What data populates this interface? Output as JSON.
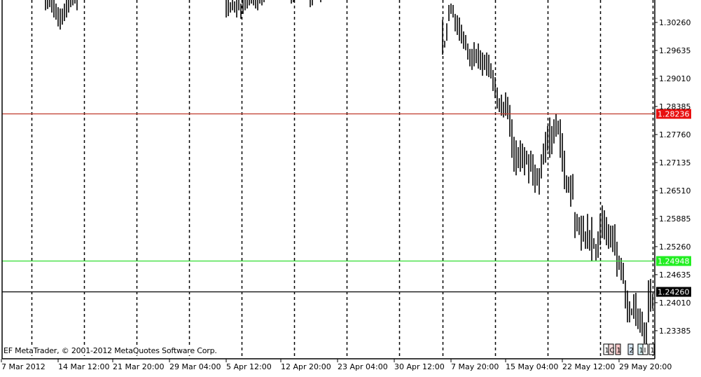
{
  "copyright": "EF MetaTrader, © 2001-2012 MetaQuotes Software Corp.",
  "colors": {
    "bars": "#000000",
    "ask_line": "#c0392b",
    "ask_tag": "#e81010",
    "green_line": "#33dd33",
    "green_tag": "#22ee22",
    "bid_line": "#000000",
    "bid_tag": "#000000",
    "grid": "#000000"
  },
  "chart_data": {
    "type": "ohlc",
    "ylim": [
      1.2279,
      1.3076
    ],
    "grid": "vertical dashed",
    "y_ticks": [
      "1.30260",
      "1.29635",
      "1.29010",
      "1.28385",
      "1.27760",
      "1.27135",
      "1.26510",
      "1.25885",
      "1.25260",
      "1.24635",
      "1.24010",
      "1.23385"
    ],
    "x_ticks": [
      {
        "label": "7 Mar 2012",
        "bar": 0
      },
      {
        "label": "14 Mar 12:00",
        "bar": 27
      },
      {
        "label": "21 Mar 20:00",
        "bar": 53
      },
      {
        "label": "29 Mar 04:00",
        "bar": 80
      },
      {
        "label": "5 Apr 12:00",
        "bar": 107
      },
      {
        "label": "12 Apr 20:00",
        "bar": 133
      },
      {
        "label": "23 Apr 04:00",
        "bar": 160
      },
      {
        "label": "30 Apr 12:00",
        "bar": 187
      },
      {
        "label": "7 May 20:00",
        "bar": 214
      },
      {
        "label": "15 May 04:00",
        "bar": 240
      },
      {
        "label": "22 May 12:00",
        "bar": 267
      },
      {
        "label": "29 May 20:00",
        "bar": 294
      }
    ],
    "price_lines": [
      {
        "name": "red-level",
        "value": "1.28236",
        "color": "#e81010"
      },
      {
        "name": "green-level",
        "value": "1.24948",
        "color": "#22ee22"
      },
      {
        "name": "current-price",
        "value": "1.24260",
        "color": "#000000"
      }
    ],
    "segments": [
      {
        "start_bar": 21,
        "bars": [
          [
            1.3076,
            1.3053
          ],
          [
            1.3076,
            1.3056
          ],
          [
            1.3076,
            1.306
          ],
          [
            1.3076,
            1.3048
          ],
          [
            1.3076,
            1.3037
          ],
          [
            1.3068,
            1.3032
          ],
          [
            1.306,
            1.3017
          ],
          [
            1.3057,
            1.301
          ],
          [
            1.3057,
            1.3021
          ],
          [
            1.3068,
            1.3029
          ],
          [
            1.3076,
            1.3037
          ],
          [
            1.3076,
            1.3048
          ],
          [
            1.3076,
            1.306
          ],
          [
            1.3076,
            1.3064
          ],
          [
            1.3076,
            1.3068
          ],
          [
            1.3076,
            1.3053
          ]
        ]
      },
      {
        "start_bar": 107,
        "bars": [
          [
            1.3076,
            1.3037
          ],
          [
            1.3076,
            1.304
          ],
          [
            1.3071,
            1.3048
          ],
          [
            1.3076,
            1.3053
          ],
          [
            1.3073,
            1.3048
          ],
          [
            1.3076,
            1.3037
          ],
          [
            1.3076,
            1.3053
          ],
          [
            1.3068,
            1.3034
          ],
          [
            1.3076,
            1.3045
          ],
          [
            1.3076,
            1.3053
          ],
          [
            1.3076,
            1.3057
          ],
          [
            1.3076,
            1.3064
          ],
          [
            1.3076,
            1.3068
          ],
          [
            1.3076,
            1.3064
          ],
          [
            1.3076,
            1.3057
          ],
          [
            1.3076,
            1.3053
          ],
          [
            1.3076,
            1.3068
          ],
          [
            1.3076,
            1.3064
          ],
          [
            1.3076,
            1.3071
          ]
        ]
      },
      {
        "start_bar": 138,
        "bars": [
          [
            1.3076,
            1.3068
          ],
          [
            1.3076,
            1.3071
          ]
        ]
      },
      {
        "start_bar": 147,
        "bars": [
          [
            1.3076,
            1.306
          ],
          [
            1.3076,
            1.3064
          ]
        ]
      },
      {
        "start_bar": 152,
        "bars": [
          [
            1.3076,
            1.3071
          ]
        ]
      },
      {
        "start_bar": 210,
        "bars": [
          [
            1.3032,
            1.2954
          ],
          [
            1.2985,
            1.297
          ],
          [
            1.3024,
            1.2985
          ],
          [
            1.3065,
            1.3029
          ],
          [
            1.3068,
            1.3045
          ],
          [
            1.3065,
            1.3037
          ],
          [
            1.3045,
            1.3006
          ],
          [
            1.3042,
            1.2998
          ],
          [
            1.3037,
            1.2985
          ],
          [
            1.3021,
            1.2979
          ],
          [
            1.3006,
            1.2967
          ],
          [
            1.2998,
            1.2964
          ],
          [
            1.2979,
            1.2943
          ],
          [
            1.2967,
            1.2928
          ],
          [
            1.2967,
            1.292
          ],
          [
            1.2982,
            1.2928
          ],
          [
            1.2967,
            1.2935
          ],
          [
            1.2979,
            1.2923
          ],
          [
            1.2964,
            1.292
          ],
          [
            1.2959,
            1.2907
          ],
          [
            1.2954,
            1.292
          ],
          [
            1.2959,
            1.2907
          ],
          [
            1.2954,
            1.2904
          ],
          [
            1.2935,
            1.2901
          ],
          [
            1.292,
            1.2873
          ],
          [
            1.2904,
            1.2857
          ],
          [
            1.2881,
            1.2834
          ],
          [
            1.2857,
            1.2826
          ],
          [
            1.2865,
            1.2818
          ],
          [
            1.2849,
            1.2814
          ],
          [
            1.287,
            1.2818
          ],
          [
            1.286,
            1.281
          ],
          [
            1.2842,
            1.2771
          ],
          [
            1.281,
            1.2724
          ],
          [
            1.2771,
            1.2693
          ],
          [
            1.2763,
            1.2685
          ],
          [
            1.2748,
            1.2701
          ],
          [
            1.2763,
            1.2693
          ],
          [
            1.2756,
            1.2701
          ],
          [
            1.2748,
            1.2685
          ],
          [
            1.274,
            1.2709
          ],
          [
            1.2732,
            1.2667
          ],
          [
            1.274,
            1.2693
          ],
          [
            1.2732,
            1.2662
          ],
          [
            1.2709,
            1.2646
          ],
          [
            1.2701,
            1.2662
          ],
          [
            1.2701,
            1.2642
          ],
          [
            1.2732,
            1.2678
          ],
          [
            1.2756,
            1.2709
          ],
          [
            1.2782,
            1.2713
          ],
          [
            1.2795,
            1.274
          ],
          [
            1.2814,
            1.2724
          ],
          [
            1.2795,
            1.2732
          ],
          [
            1.281,
            1.2756
          ],
          [
            1.2823,
            1.2771
          ],
          [
            1.2807,
            1.2776
          ],
          [
            1.281,
            1.2724
          ],
          [
            1.2779,
            1.2693
          ],
          [
            1.274,
            1.2654
          ],
          [
            1.2685,
            1.2646
          ],
          [
            1.2682,
            1.2646
          ],
          [
            1.2685,
            1.2615
          ],
          [
            1.2688,
            1.2631
          ],
          [
            1.2603,
            1.2545
          ],
          [
            1.2599,
            1.256
          ],
          [
            1.2592,
            1.2552
          ],
          [
            1.2595,
            1.2517
          ],
          [
            1.2595,
            1.2537
          ],
          [
            1.256,
            1.2521
          ],
          [
            1.2599,
            1.2521
          ],
          [
            1.2563,
            1.2517
          ],
          [
            1.2592,
            1.2493
          ],
          [
            1.2545,
            1.2521
          ],
          [
            1.2532,
            1.2495
          ],
          [
            1.256,
            1.2501
          ],
          [
            1.2599,
            1.2529
          ],
          [
            1.2618,
            1.2545
          ],
          [
            1.2607,
            1.2542
          ],
          [
            1.2592,
            1.2529
          ],
          [
            1.2576,
            1.2521
          ],
          [
            1.2573,
            1.2524
          ],
          [
            1.2573,
            1.2514
          ],
          [
            1.2576,
            1.2506
          ],
          [
            1.2537,
            1.2459
          ],
          [
            1.2506,
            1.2474
          ],
          [
            1.2501,
            1.2451
          ],
          [
            1.249,
            1.2443
          ],
          [
            1.2451,
            1.2388
          ],
          [
            1.2428,
            1.2357
          ],
          [
            1.2404,
            1.2357
          ],
          [
            1.2388,
            1.2373
          ],
          [
            1.242,
            1.2365
          ],
          [
            1.2423,
            1.2349
          ],
          [
            1.2388,
            1.2342
          ],
          [
            1.2388,
            1.2334
          ],
          [
            1.2381,
            1.2326
          ],
          [
            1.2357,
            1.231
          ],
          [
            1.2357,
            1.2302
          ],
          [
            1.2451,
            1.2357
          ],
          [
            1.2454,
            1.2381
          ],
          [
            1.242,
            1.2388
          ]
        ]
      }
    ],
    "event_markers": [
      {
        "label": "1",
        "color": "#ffffff"
      },
      {
        "label": "C",
        "color": "#f7dede"
      },
      {
        "label": "1",
        "color": "#f5c6c6"
      },
      {
        "label": "2",
        "color": "#d8e8f5"
      },
      {
        "label": "1",
        "color": "#d8f2f5"
      },
      {
        "label": "I",
        "color": "#ffffff"
      },
      {
        "label": "1",
        "color": "#ffffff"
      }
    ]
  }
}
